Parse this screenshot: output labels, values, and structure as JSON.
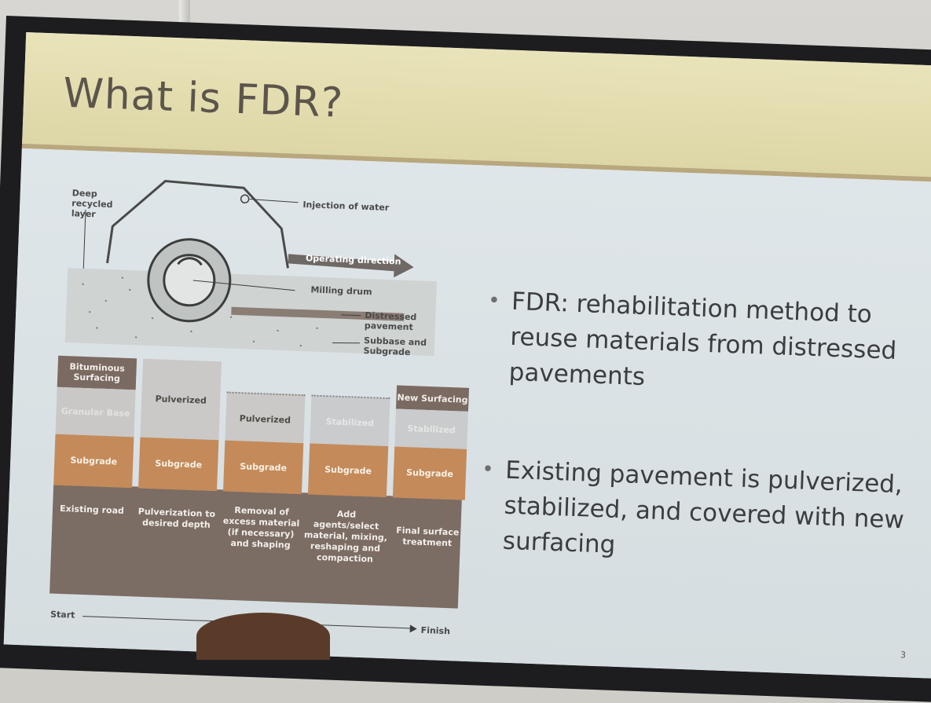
{
  "slide": {
    "title": "What is FDR?",
    "page_number": "3",
    "bullets": [
      {
        "text": "FDR: rehabilitation method to reuse materials from distressed pavements"
      },
      {
        "text": "Existing pavement is pulverized, stabilized, and covered with new surfacing"
      }
    ]
  },
  "diagram": {
    "labels": {
      "deep_recycled": "Deep recycled layer",
      "injection": "Injection of water",
      "operating_direction": "Operating direction",
      "milling_drum": "Milling drum",
      "distressed": "Distressed pavement",
      "subbase": "Subbase and Subgrade",
      "start": "Start",
      "finish": "Finish"
    },
    "columns": [
      {
        "top": "Bituminous Surfacing",
        "mid": "Granular Base",
        "bottom": "Subgrade",
        "caption": "Existing road"
      },
      {
        "top": "",
        "mid": "Pulverized",
        "bottom": "Subgrade",
        "caption": "Pulverization to desired depth"
      },
      {
        "top": "",
        "mid": "Pulverized",
        "bottom": "Subgrade",
        "caption": "Removal of excess material (if necessary) and shaping"
      },
      {
        "top": "",
        "mid": "Stabilized",
        "bottom": "Subgrade",
        "caption": "Add agents/select material, mixing, reshaping and compaction"
      },
      {
        "top": "New Surfacing",
        "mid": "Stabilized",
        "bottom": "Subgrade",
        "caption": "Final surface treatment"
      }
    ]
  }
}
